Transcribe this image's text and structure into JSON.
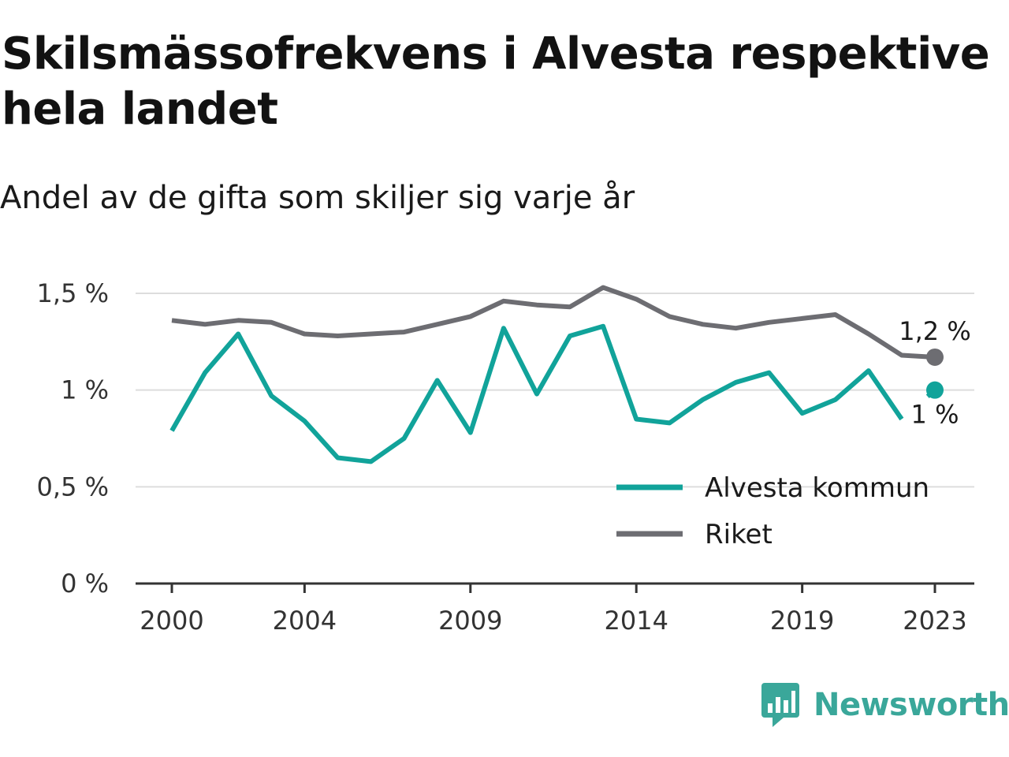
{
  "header": {
    "title": "Skilsmässofrekvens i Alvesta respektive hela landet",
    "subtitle": "Andel av de gifta som skiljer sig varje år"
  },
  "brand": {
    "name": "Newsworthy",
    "icon": "newsworthy-logo-icon"
  },
  "colors": {
    "alvesta": "#11a39a",
    "riket": "#6d6d72",
    "grid": "#dddddd",
    "axis": "#333333",
    "brand": "#3aa79a"
  },
  "chart_data": {
    "type": "line",
    "x": [
      2000,
      2001,
      2002,
      2003,
      2004,
      2005,
      2006,
      2007,
      2008,
      2009,
      2010,
      2011,
      2012,
      2013,
      2014,
      2015,
      2016,
      2017,
      2018,
      2019,
      2020,
      2021,
      2022,
      2023
    ],
    "x_ticks": [
      2000,
      2004,
      2009,
      2014,
      2019,
      2023
    ],
    "x_tick_labels": [
      "2000",
      "2004",
      "2009",
      "2014",
      "2019",
      "2023"
    ],
    "y_ticks": [
      0,
      0.5,
      1,
      1.5
    ],
    "y_tick_labels": [
      "0 %",
      "0,5 %",
      "1 %",
      "1,5 %"
    ],
    "ylim": [
      0,
      1.5
    ],
    "xlim": [
      2000,
      2023
    ],
    "grid": true,
    "legend_position": "bottom-right",
    "series": [
      {
        "name": "Alvesta kommun",
        "color": "#11a39a",
        "values": [
          0.79,
          1.09,
          1.29,
          0.97,
          0.84,
          0.65,
          0.63,
          0.75,
          1.05,
          0.78,
          1.32,
          0.98,
          1.28,
          1.33,
          0.85,
          0.83,
          0.95,
          1.04,
          1.09,
          0.88,
          0.95,
          1.1,
          0.85,
          1.0
        ],
        "end_label": "1 %",
        "gap_before_last": true
      },
      {
        "name": "Riket",
        "color": "#6d6d72",
        "values": [
          1.36,
          1.34,
          1.36,
          1.35,
          1.29,
          1.28,
          1.29,
          1.3,
          1.34,
          1.38,
          1.46,
          1.44,
          1.43,
          1.53,
          1.47,
          1.38,
          1.34,
          1.32,
          1.35,
          1.37,
          1.39,
          1.29,
          1.18,
          1.17
        ],
        "end_label": "1,2 %"
      }
    ]
  }
}
